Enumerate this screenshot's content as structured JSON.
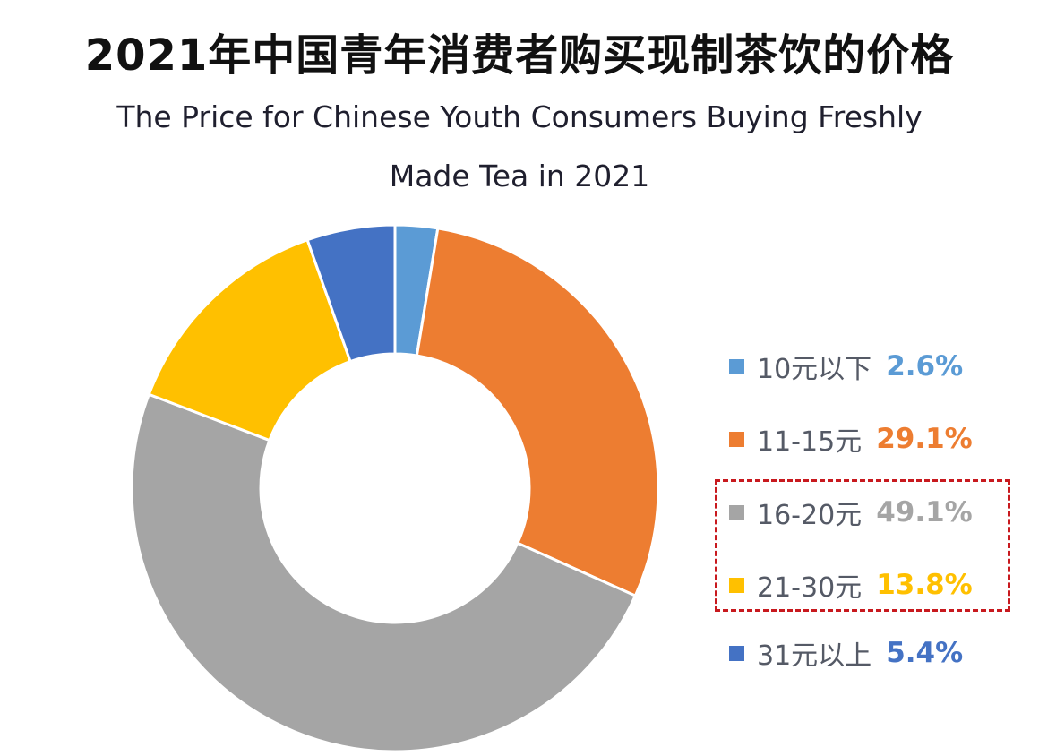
{
  "chart_data": {
    "type": "pie",
    "variant": "donut",
    "title": "2021年中国青年消费者购买现制茶饮的价格",
    "subtitle_lines": [
      "The Price for Chinese Youth Consumers Buying Freshly",
      "Made Tea in 2021"
    ],
    "categories": [
      "10元以下",
      "11-15元",
      "16-20元",
      "21-30元",
      "31元以上"
    ],
    "values": [
      2.6,
      29.1,
      49.1,
      13.8,
      5.4
    ],
    "value_labels": [
      "2.6%",
      "29.1%",
      "49.1%",
      "13.8%",
      "5.4%"
    ],
    "colors": [
      "#5b9bd5",
      "#ed7d31",
      "#a5a5a5",
      "#ffc000",
      "#4472c4"
    ],
    "legend_position": "right",
    "highlighted_categories": [
      "16-20元",
      "21-30元"
    ],
    "highlight_color": "#c8191e"
  }
}
